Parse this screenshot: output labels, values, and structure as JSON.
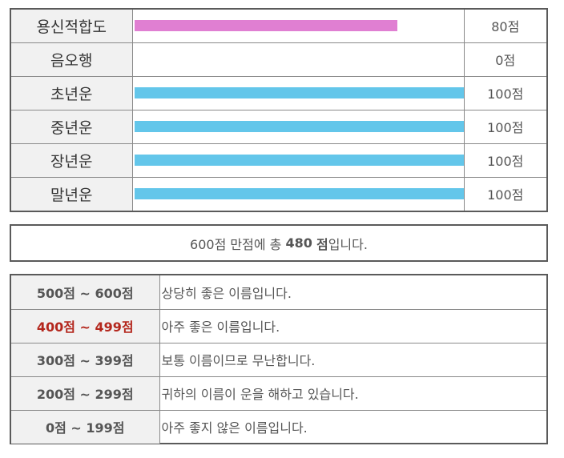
{
  "score_rows": [
    {
      "label": "용신적합도",
      "score": "80점",
      "level": 0.8,
      "color": "#e07fd2"
    },
    {
      "label": "음오행",
      "score": "0점",
      "level": 0.0,
      "color": "#63c6ea"
    },
    {
      "label": "초년운",
      "score": "100점",
      "level": 1.0,
      "color": "#63c6ea"
    },
    {
      "label": "중년운",
      "score": "100점",
      "level": 1.0,
      "color": "#63c6ea"
    },
    {
      "label": "장년운",
      "score": "100점",
      "level": 1.0,
      "color": "#63c6ea"
    },
    {
      "label": "말년운",
      "score": "100점",
      "level": 1.0,
      "color": "#63c6ea"
    }
  ],
  "total": {
    "prefix": "600점 만점에 총",
    "value": "480",
    "unit": "점",
    "suffix": "입니다."
  },
  "grades": [
    {
      "range": "500점 ~ 600점",
      "desc": "상당히 좋은 이름입니다.",
      "highlight": false
    },
    {
      "range": "400점 ~ 499점",
      "desc": "아주 좋은 이름입니다.",
      "highlight": true
    },
    {
      "range": "300점 ~ 399점",
      "desc": "보통 이름이므로 무난합니다.",
      "highlight": false
    },
    {
      "range": "200점 ~ 299점",
      "desc": "귀하의 이름이 운을 해하고 있습니다.",
      "highlight": false
    },
    {
      "range": "0점 ~ 199점",
      "desc": "아주 좋지 않은 이름입니다.",
      "highlight": false
    }
  ],
  "colors": {
    "highlight_text": "#b4271d",
    "label_bg": "#f1f1f1",
    "border": "#5a5a5a"
  }
}
